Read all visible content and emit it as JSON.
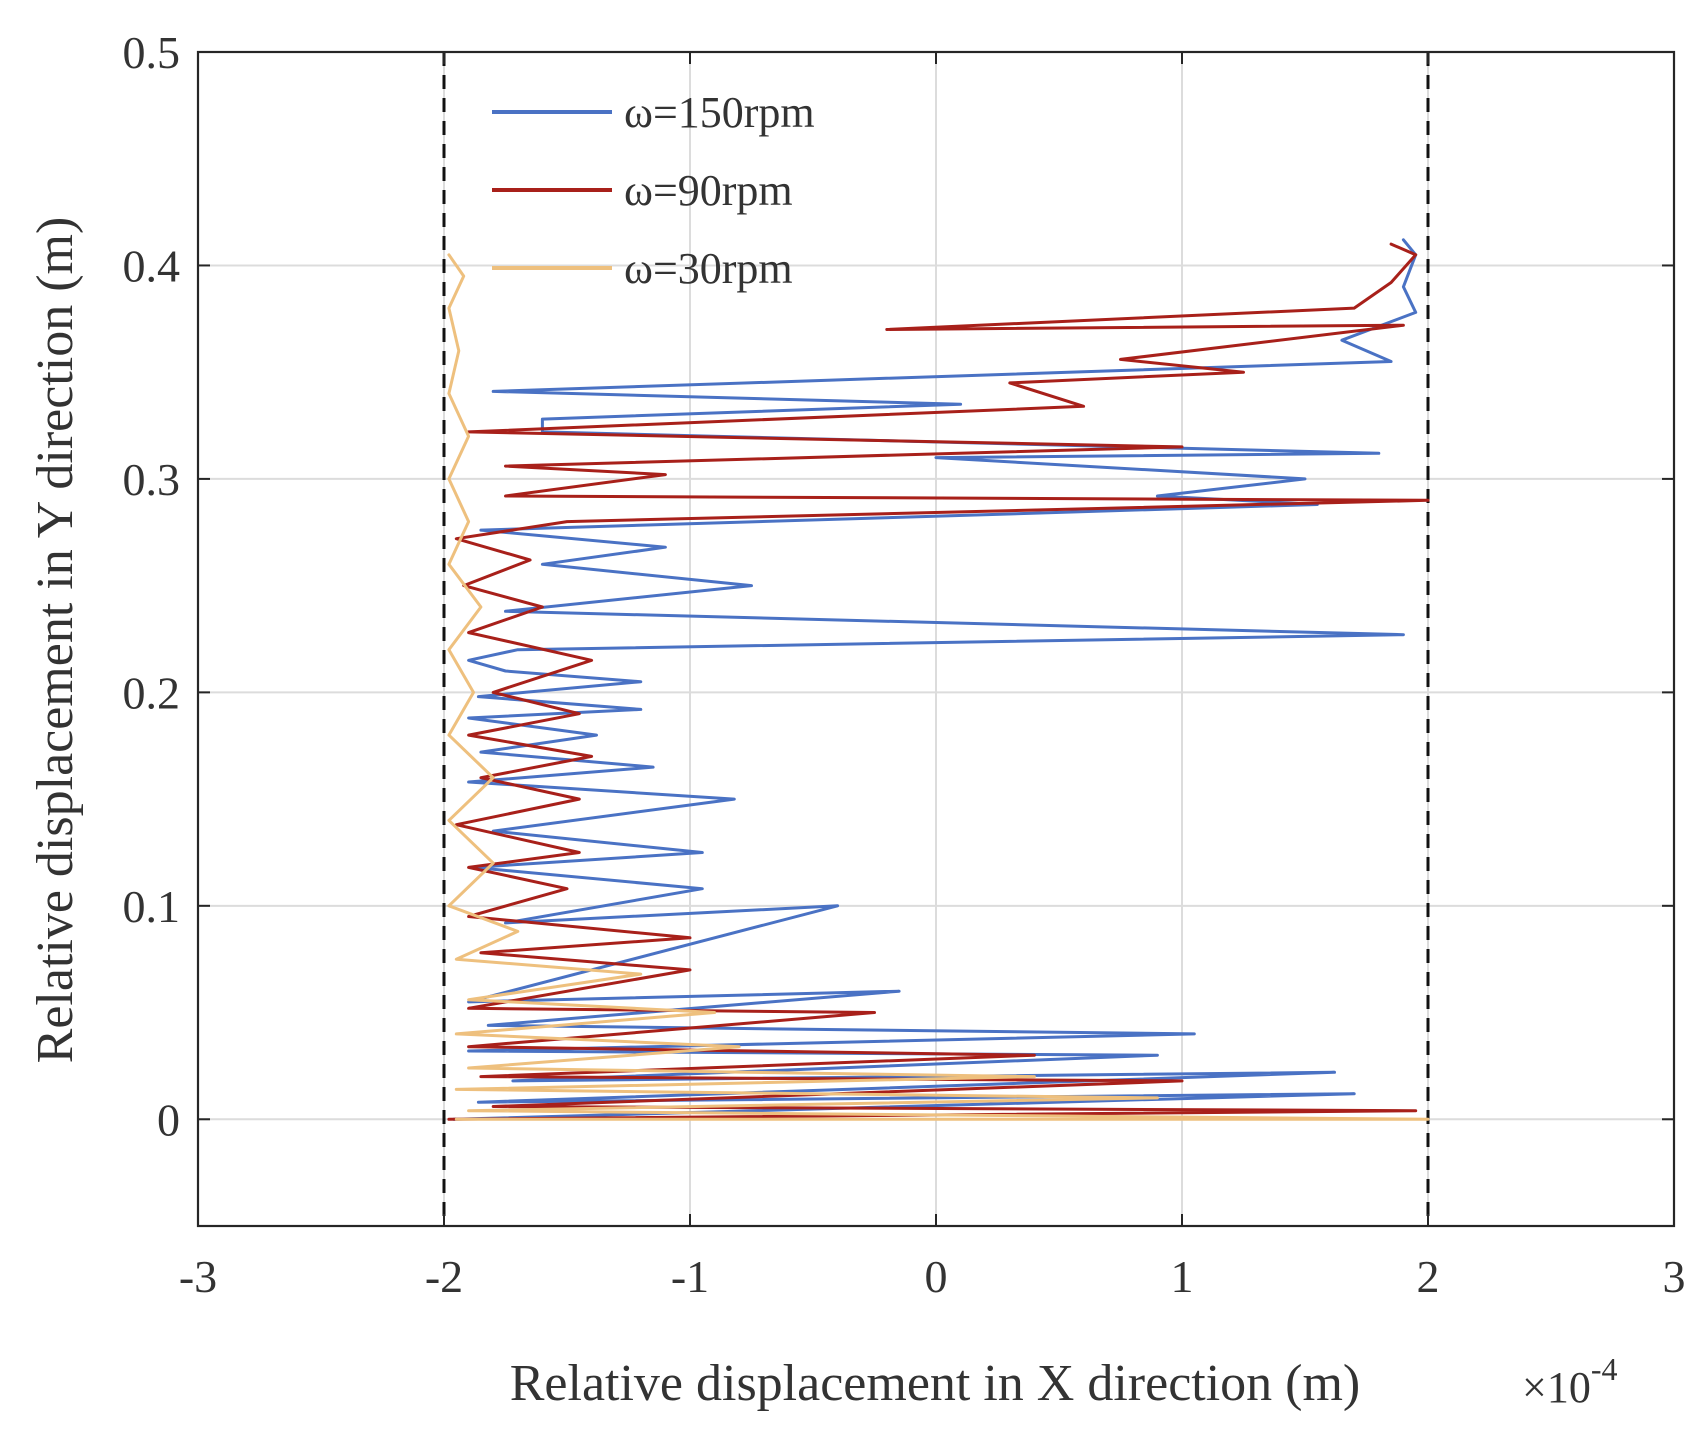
{
  "chart_data": {
    "type": "line",
    "title": "",
    "xlabel": "Relative displacement in X direction (m)",
    "x_multiplier_base": "×10",
    "x_multiplier_exp": "-4",
    "ylabel": "Relative displacement in Y direction (m)",
    "xlim": [
      -3,
      3
    ],
    "ylim": [
      -0.05,
      0.5
    ],
    "xticks": [
      "-3",
      "-2",
      "-1",
      "0",
      "1",
      "2",
      "3"
    ],
    "yticks": [
      "0",
      "0.1",
      "0.2",
      "0.3",
      "0.4",
      "0.5"
    ],
    "xtick_values": [
      -3,
      -2,
      -1,
      0,
      1,
      2,
      3
    ],
    "ytick_values": [
      0,
      0.1,
      0.2,
      0.3,
      0.4,
      0.5
    ],
    "grid": true,
    "legend_position": "top-left",
    "reference_lines_x": [
      -2,
      2
    ],
    "series": [
      {
        "name": "ω=150rpm",
        "color": "#4a72c4",
        "points": [
          [
            -1.96,
            0.0
          ],
          [
            1.7,
            0.012
          ],
          [
            -1.86,
            0.008
          ],
          [
            1.62,
            0.022
          ],
          [
            -1.72,
            0.018
          ],
          [
            0.9,
            0.03
          ],
          [
            -1.9,
            0.032
          ],
          [
            1.05,
            0.04
          ],
          [
            -1.82,
            0.044
          ],
          [
            -0.15,
            0.06
          ],
          [
            -1.9,
            0.055
          ],
          [
            -0.4,
            0.1
          ],
          [
            -1.75,
            0.092
          ],
          [
            -0.95,
            0.108
          ],
          [
            -1.88,
            0.118
          ],
          [
            -0.95,
            0.125
          ],
          [
            -1.8,
            0.135
          ],
          [
            -0.82,
            0.15
          ],
          [
            -1.9,
            0.158
          ],
          [
            -1.15,
            0.165
          ],
          [
            -1.85,
            0.172
          ],
          [
            -1.38,
            0.18
          ],
          [
            -1.9,
            0.188
          ],
          [
            -1.2,
            0.192
          ],
          [
            -1.86,
            0.198
          ],
          [
            -1.2,
            0.205
          ],
          [
            -1.75,
            0.21
          ],
          [
            -1.9,
            0.215
          ],
          [
            -1.7,
            0.22
          ],
          [
            1.9,
            0.227
          ],
          [
            -1.75,
            0.238
          ],
          [
            -0.75,
            0.25
          ],
          [
            -1.6,
            0.26
          ],
          [
            -1.1,
            0.268
          ],
          [
            -1.85,
            0.276
          ],
          [
            1.55,
            0.288
          ],
          [
            0.9,
            0.292
          ],
          [
            1.5,
            0.3
          ],
          [
            0.0,
            0.31
          ],
          [
            1.8,
            0.312
          ],
          [
            -1.6,
            0.322
          ],
          [
            -1.6,
            0.328
          ],
          [
            0.1,
            0.335
          ],
          [
            -1.8,
            0.341
          ],
          [
            1.85,
            0.355
          ],
          [
            1.65,
            0.365
          ],
          [
            1.95,
            0.378
          ],
          [
            1.9,
            0.39
          ],
          [
            1.95,
            0.405
          ],
          [
            1.9,
            0.412
          ]
        ]
      },
      {
        "name": "ω=90rpm",
        "color": "#a8201a",
        "points": [
          [
            -1.98,
            0.0
          ],
          [
            1.95,
            0.004
          ],
          [
            -1.8,
            0.006
          ],
          [
            1.0,
            0.018
          ],
          [
            -1.85,
            0.02
          ],
          [
            0.4,
            0.03
          ],
          [
            -1.9,
            0.034
          ],
          [
            -0.25,
            0.05
          ],
          [
            -1.9,
            0.052
          ],
          [
            -1.0,
            0.07
          ],
          [
            -1.85,
            0.078
          ],
          [
            -1.0,
            0.085
          ],
          [
            -1.9,
            0.095
          ],
          [
            -1.5,
            0.108
          ],
          [
            -1.9,
            0.118
          ],
          [
            -1.45,
            0.125
          ],
          [
            -1.95,
            0.138
          ],
          [
            -1.45,
            0.15
          ],
          [
            -1.85,
            0.16
          ],
          [
            -1.4,
            0.17
          ],
          [
            -1.9,
            0.18
          ],
          [
            -1.45,
            0.19
          ],
          [
            -1.8,
            0.2
          ],
          [
            -1.4,
            0.215
          ],
          [
            -1.9,
            0.228
          ],
          [
            -1.6,
            0.24
          ],
          [
            -1.92,
            0.25
          ],
          [
            -1.65,
            0.262
          ],
          [
            -1.95,
            0.272
          ],
          [
            -1.5,
            0.28
          ],
          [
            2.0,
            0.29
          ],
          [
            -1.75,
            0.292
          ],
          [
            -1.1,
            0.302
          ],
          [
            -1.75,
            0.306
          ],
          [
            1.0,
            0.315
          ],
          [
            -1.9,
            0.322
          ],
          [
            0.6,
            0.334
          ],
          [
            0.3,
            0.345
          ],
          [
            1.25,
            0.35
          ],
          [
            0.75,
            0.356
          ],
          [
            1.9,
            0.372
          ],
          [
            -0.2,
            0.37
          ],
          [
            1.7,
            0.38
          ],
          [
            1.85,
            0.392
          ],
          [
            1.95,
            0.405
          ],
          [
            1.85,
            0.41
          ]
        ]
      },
      {
        "name": "ω=30rpm",
        "color": "#eec07e",
        "points": [
          [
            -1.95,
            0.0
          ],
          [
            2.0,
            0.0
          ],
          [
            -1.9,
            0.004
          ],
          [
            0.9,
            0.01
          ],
          [
            -1.95,
            0.014
          ],
          [
            0.4,
            0.02
          ],
          [
            -1.9,
            0.024
          ],
          [
            -0.8,
            0.034
          ],
          [
            -1.95,
            0.04
          ],
          [
            -0.9,
            0.05
          ],
          [
            -1.9,
            0.056
          ],
          [
            -1.2,
            0.068
          ],
          [
            -1.95,
            0.075
          ],
          [
            -1.7,
            0.088
          ],
          [
            -1.98,
            0.1
          ],
          [
            -1.8,
            0.12
          ],
          [
            -1.98,
            0.14
          ],
          [
            -1.8,
            0.16
          ],
          [
            -1.98,
            0.18
          ],
          [
            -1.88,
            0.2
          ],
          [
            -1.98,
            0.22
          ],
          [
            -1.85,
            0.24
          ],
          [
            -1.98,
            0.26
          ],
          [
            -1.9,
            0.28
          ],
          [
            -1.98,
            0.3
          ],
          [
            -1.9,
            0.32
          ],
          [
            -1.98,
            0.34
          ],
          [
            -1.94,
            0.36
          ],
          [
            -1.98,
            0.38
          ],
          [
            -1.92,
            0.395
          ],
          [
            -1.98,
            0.405
          ]
        ]
      }
    ]
  }
}
